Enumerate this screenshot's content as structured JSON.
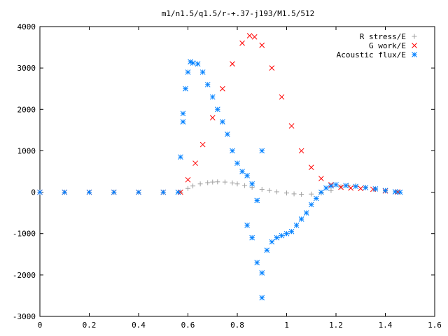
{
  "chart_data": {
    "type": "scatter",
    "title": "m1/n1.5/q1.5/r-+.37-j193/M1.5/512",
    "xlabel": "",
    "ylabel": "",
    "xlim": [
      0,
      1.6
    ],
    "ylim": [
      -3000,
      4000
    ],
    "x_ticks": [
      0,
      0.2,
      0.4,
      0.6,
      0.8,
      1,
      1.2,
      1.4,
      1.6
    ],
    "x_tick_labels": [
      "0",
      "0.2",
      "0.4",
      "0.6",
      "0.8",
      "1",
      "1.2",
      "1.4",
      "1.6"
    ],
    "y_ticks": [
      -3000,
      -2000,
      -1000,
      0,
      1000,
      2000,
      3000,
      4000
    ],
    "y_tick_labels": [
      "-3000",
      "-2000",
      "-1000",
      "0",
      "1000",
      "2000",
      "3000",
      "4000"
    ],
    "grid": false,
    "legend_position": "top-right",
    "series": [
      {
        "name": "R stress/E",
        "marker": "+",
        "color": "#a0a0a0",
        "points": [
          [
            0.0,
            0
          ],
          [
            0.1,
            0
          ],
          [
            0.2,
            0
          ],
          [
            0.3,
            0
          ],
          [
            0.4,
            0
          ],
          [
            0.5,
            0
          ],
          [
            0.57,
            0
          ],
          [
            0.6,
            90
          ],
          [
            0.62,
            150
          ],
          [
            0.65,
            200
          ],
          [
            0.68,
            230
          ],
          [
            0.7,
            245
          ],
          [
            0.72,
            250
          ],
          [
            0.75,
            245
          ],
          [
            0.78,
            225
          ],
          [
            0.8,
            200
          ],
          [
            0.83,
            160
          ],
          [
            0.86,
            120
          ],
          [
            0.9,
            70
          ],
          [
            0.93,
            40
          ],
          [
            0.96,
            10
          ],
          [
            1.0,
            -20
          ],
          [
            1.03,
            -40
          ],
          [
            1.06,
            -50
          ],
          [
            1.1,
            -45
          ],
          [
            1.14,
            -20
          ],
          [
            1.18,
            40
          ],
          [
            1.22,
            130
          ],
          [
            1.25,
            170
          ],
          [
            1.28,
            160
          ],
          [
            1.32,
            120
          ],
          [
            1.36,
            70
          ],
          [
            1.4,
            30
          ],
          [
            1.45,
            5
          ]
        ]
      },
      {
        "name": "G work/E",
        "marker": "x",
        "color": "#ff0000",
        "points": [
          [
            0.0,
            0
          ],
          [
            0.1,
            0
          ],
          [
            0.2,
            0
          ],
          [
            0.3,
            0
          ],
          [
            0.4,
            0
          ],
          [
            0.5,
            0
          ],
          [
            0.57,
            0
          ],
          [
            0.6,
            300
          ],
          [
            0.63,
            700
          ],
          [
            0.66,
            1150
          ],
          [
            0.7,
            1800
          ],
          [
            0.74,
            2500
          ],
          [
            0.78,
            3100
          ],
          [
            0.82,
            3600
          ],
          [
            0.85,
            3780
          ],
          [
            0.87,
            3750
          ],
          [
            0.9,
            3550
          ],
          [
            0.94,
            3000
          ],
          [
            0.98,
            2300
          ],
          [
            1.02,
            1600
          ],
          [
            1.06,
            1000
          ],
          [
            1.1,
            600
          ],
          [
            1.14,
            330
          ],
          [
            1.18,
            180
          ],
          [
            1.22,
            120
          ],
          [
            1.26,
            100
          ],
          [
            1.3,
            90
          ],
          [
            1.35,
            70
          ],
          [
            1.4,
            30
          ],
          [
            1.45,
            5
          ]
        ]
      },
      {
        "name": "Acoustic flux/E",
        "marker": "*",
        "color": "#0080ff",
        "points": [
          [
            0.0,
            0
          ],
          [
            0.1,
            0
          ],
          [
            0.2,
            0
          ],
          [
            0.3,
            0
          ],
          [
            0.4,
            0
          ],
          [
            0.5,
            0
          ],
          [
            0.56,
            0
          ],
          [
            0.57,
            850
          ],
          [
            0.58,
            1700
          ],
          [
            0.58,
            1900
          ],
          [
            0.59,
            2500
          ],
          [
            0.6,
            2900
          ],
          [
            0.61,
            3150
          ],
          [
            0.62,
            3120
          ],
          [
            0.64,
            3100
          ],
          [
            0.66,
            2900
          ],
          [
            0.68,
            2600
          ],
          [
            0.7,
            2300
          ],
          [
            0.72,
            2000
          ],
          [
            0.74,
            1700
          ],
          [
            0.76,
            1400
          ],
          [
            0.78,
            1000
          ],
          [
            0.8,
            700
          ],
          [
            0.82,
            500
          ],
          [
            0.84,
            400
          ],
          [
            0.86,
            200
          ],
          [
            0.88,
            -200
          ],
          [
            0.9,
            1000
          ],
          [
            0.84,
            -800
          ],
          [
            0.86,
            -1100
          ],
          [
            0.88,
            -1700
          ],
          [
            0.9,
            -2550
          ],
          [
            0.9,
            -1950
          ],
          [
            0.92,
            -1400
          ],
          [
            0.94,
            -1200
          ],
          [
            0.96,
            -1100
          ],
          [
            0.98,
            -1050
          ],
          [
            1.0,
            -1000
          ],
          [
            1.02,
            -950
          ],
          [
            1.04,
            -800
          ],
          [
            1.06,
            -650
          ],
          [
            1.08,
            -500
          ],
          [
            1.1,
            -300
          ],
          [
            1.12,
            -150
          ],
          [
            1.14,
            0
          ],
          [
            1.16,
            100
          ],
          [
            1.18,
            150
          ],
          [
            1.2,
            180
          ],
          [
            1.24,
            160
          ],
          [
            1.28,
            140
          ],
          [
            1.32,
            110
          ],
          [
            1.36,
            80
          ],
          [
            1.4,
            40
          ],
          [
            1.44,
            10
          ],
          [
            1.46,
            0
          ]
        ]
      }
    ]
  }
}
